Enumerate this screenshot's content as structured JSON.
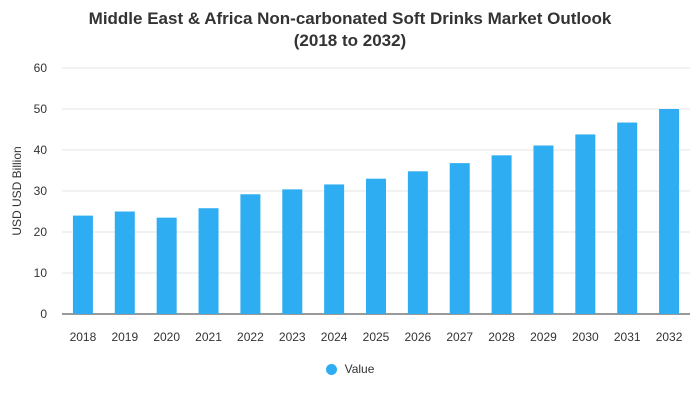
{
  "title_line1": "Middle East & Africa Non-carbonated Soft Drinks Market Outlook",
  "title_line2": "(2018 to 2032)",
  "colors": {
    "bar": "#2eadf2",
    "grid": "#e6e6e6",
    "axis": "#333333"
  },
  "chart_data": {
    "type": "bar",
    "title": "Middle East & Africa Non-carbonated Soft Drinks Market Outlook (2018 to 2032)",
    "xlabel": "",
    "ylabel": "USD USD Billion",
    "categories": [
      "2018",
      "2019",
      "2020",
      "2021",
      "2022",
      "2023",
      "2024",
      "2025",
      "2026",
      "2027",
      "2028",
      "2029",
      "2030",
      "2031",
      "2032"
    ],
    "series": [
      {
        "name": "Value",
        "values": [
          24.0,
          25.0,
          23.5,
          25.8,
          29.2,
          30.4,
          31.6,
          33.0,
          34.8,
          36.8,
          38.7,
          41.1,
          43.8,
          46.7,
          50.0
        ]
      }
    ],
    "ylim": [
      0,
      60
    ],
    "yticks": [
      "0",
      "10",
      "20",
      "30",
      "40",
      "50",
      "60"
    ],
    "grid": true,
    "legend": "bottom-center"
  }
}
